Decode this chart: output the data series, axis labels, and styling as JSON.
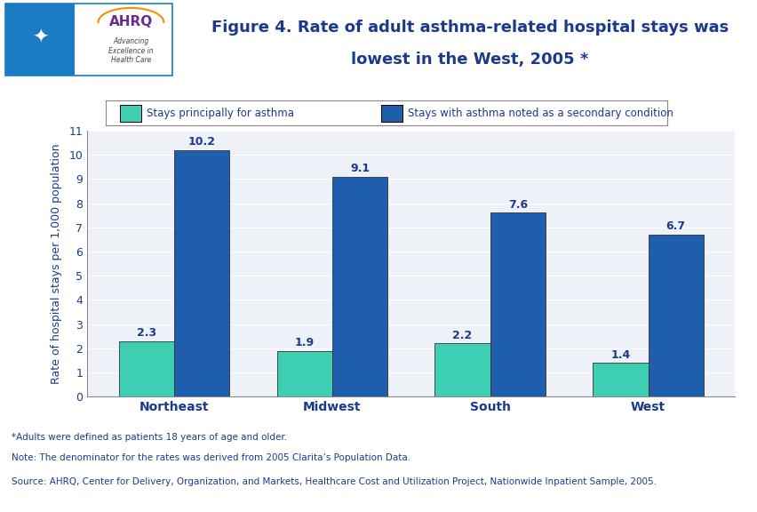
{
  "title_line1": "Figure 4. Rate of adult asthma-related hospital stays was",
  "title_line2": "lowest in the West, 2005 *",
  "categories": [
    "Northeast",
    "Midwest",
    "South",
    "West"
  ],
  "primary_values": [
    2.3,
    1.9,
    2.2,
    1.4
  ],
  "secondary_values": [
    10.2,
    9.1,
    7.6,
    6.7
  ],
  "primary_color": "#3ECFB2",
  "secondary_color": "#1F5DAD",
  "primary_label": "Stays principally for asthma",
  "secondary_label": "Stays with asthma noted as a secondary condition",
  "ylabel": "Rate of hospital stays per 1,000 population",
  "ylim": [
    0,
    11
  ],
  "yticks": [
    0,
    1,
    2,
    3,
    4,
    5,
    6,
    7,
    8,
    9,
    10,
    11
  ],
  "background_color": "#FFFFFF",
  "chart_bg_color": "#EEF2F8",
  "title_color": "#1B3A8C",
  "footer_line1": "*Adults were defined as patients 18 years of age and older.",
  "footer_line2": "Note: The denominator for the rates was derived from 2005 Clarita’s Population Data.",
  "footer_line3": "Source: AHRQ, Center for Delivery, Organization, and Markets, Healthcare Cost and Utilization Project, Nationwide Inpatient Sample, 2005.",
  "bar_width": 0.35,
  "separator_color": "#1B3A8C",
  "label_color": "#1B3A8C",
  "tick_color": "#1B3A8C",
  "hhs_blue": "#1B7BC4",
  "ahrq_purple": "#6B2C91",
  "logo_border_color": "#1B7BC4"
}
